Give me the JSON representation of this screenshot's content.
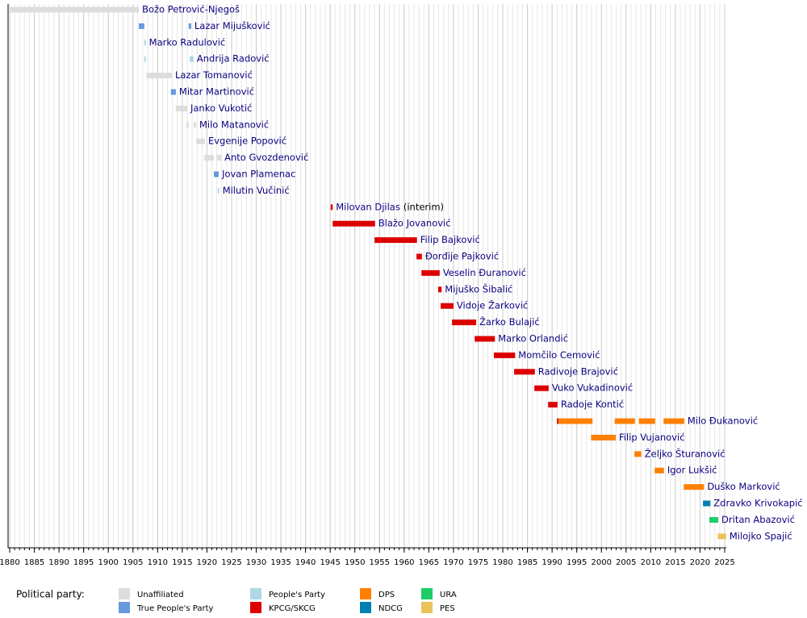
{
  "chart_data": {
    "type": "timeline",
    "xlim": [
      1880,
      2025
    ],
    "xticks": [
      1880,
      1885,
      1890,
      1895,
      1900,
      1905,
      1910,
      1915,
      1920,
      1925,
      1930,
      1935,
      1940,
      1945,
      1950,
      1955,
      1960,
      1965,
      1970,
      1975,
      1980,
      1985,
      1990,
      1995,
      2000,
      2005,
      2010,
      2015,
      2020,
      2025
    ],
    "grid": true,
    "legend_title": "Political party:",
    "parties": [
      {
        "name": "Unaffiliated",
        "color": "#dddddd"
      },
      {
        "name": "True People's Party",
        "color": "#6699dd"
      },
      {
        "name": "People's Party",
        "color": "#add8e6"
      },
      {
        "name": "KPCG/SKCG",
        "color": "#dd0000"
      },
      {
        "name": "DPS",
        "color": "#ff8000"
      },
      {
        "name": "NDCG",
        "color": "#0080b0"
      },
      {
        "name": "URA",
        "color": "#1ccc66"
      },
      {
        "name": "PES",
        "color": "#eac25a"
      }
    ],
    "rows": [
      {
        "name": "Božo Petrović-Njegoš",
        "segments": [
          {
            "start": 1880,
            "end": 1906.2,
            "party": "Unaffiliated"
          }
        ]
      },
      {
        "name": "Lazar Mijušković",
        "segments": [
          {
            "start": 1906.2,
            "end": 1907.3,
            "party": "True People's Party"
          },
          {
            "start": 1916.3,
            "end": 1916.8,
            "party": "True People's Party"
          }
        ]
      },
      {
        "name": "Marko Radulović",
        "segments": [
          {
            "start": 1907.3,
            "end": 1907.6,
            "party": "People's Party"
          }
        ]
      },
      {
        "name": "Andrija Radović",
        "segments": [
          {
            "start": 1907.3,
            "end": 1907.6,
            "party": "People's Party"
          },
          {
            "start": 1916.5,
            "end": 1917.3,
            "party": "People's Party"
          }
        ]
      },
      {
        "name": "Lazar Tomanović",
        "segments": [
          {
            "start": 1907.7,
            "end": 1912.9,
            "party": "Unaffiliated"
          }
        ]
      },
      {
        "name": "Mitar Martinović",
        "segments": [
          {
            "start": 1912.7,
            "end": 1913.7,
            "party": "True People's Party"
          }
        ]
      },
      {
        "name": "Janko Vukotić",
        "segments": [
          {
            "start": 1913.7,
            "end": 1916,
            "party": "Unaffiliated"
          }
        ]
      },
      {
        "name": "Milo Matanović",
        "segments": [
          {
            "start": 1915.8,
            "end": 1916.3,
            "party": "Unaffiliated"
          },
          {
            "start": 1917.3,
            "end": 1917.8,
            "party": "Unaffiliated"
          }
        ]
      },
      {
        "name": "Evgenije Popović",
        "segments": [
          {
            "start": 1917.8,
            "end": 1919.6,
            "party": "Unaffiliated"
          }
        ]
      },
      {
        "name": "Anto Gvozdenović",
        "segments": [
          {
            "start": 1919.4,
            "end": 1921.4,
            "party": "Unaffiliated"
          },
          {
            "start": 1922,
            "end": 1922.9,
            "party": "Unaffiliated"
          }
        ]
      },
      {
        "name": "Jovan Plamenac",
        "segments": [
          {
            "start": 1921.4,
            "end": 1922.4,
            "party": "True People's Party"
          }
        ]
      },
      {
        "name": "Milutin Vučinić",
        "segments": [
          {
            "start": 1922.2,
            "end": 1922.5,
            "party": "People's Party"
          }
        ]
      },
      {
        "name": "Milovan Djilas",
        "note": "(interim)",
        "segments": [
          {
            "start": 1945.1,
            "end": 1945.5,
            "party": "KPCG/SKCG"
          }
        ]
      },
      {
        "name": "Blažo Jovanović",
        "segments": [
          {
            "start": 1945.5,
            "end": 1954.1,
            "party": "KPCG/SKCG"
          }
        ]
      },
      {
        "name": "Filip Bajković",
        "segments": [
          {
            "start": 1954,
            "end": 1962.6,
            "party": "KPCG/SKCG"
          }
        ]
      },
      {
        "name": "Đorđije Pajković",
        "segments": [
          {
            "start": 1962.5,
            "end": 1963.6,
            "party": "KPCG/SKCG"
          }
        ]
      },
      {
        "name": "Veselin Đuranović",
        "segments": [
          {
            "start": 1963.5,
            "end": 1967.2,
            "party": "KPCG/SKCG"
          }
        ]
      },
      {
        "name": "Mijuško Šibalić",
        "segments": [
          {
            "start": 1966.9,
            "end": 1967.6,
            "party": "KPCG/SKCG"
          }
        ]
      },
      {
        "name": "Vidoje Žarković",
        "segments": [
          {
            "start": 1967.4,
            "end": 1970,
            "party": "KPCG/SKCG"
          }
        ]
      },
      {
        "name": "Žarko Bulajić",
        "segments": [
          {
            "start": 1969.7,
            "end": 1974.6,
            "party": "KPCG/SKCG"
          }
        ]
      },
      {
        "name": "Marko Orlandić",
        "segments": [
          {
            "start": 1974.3,
            "end": 1978.4,
            "party": "KPCG/SKCG"
          }
        ]
      },
      {
        "name": "Momčilo Cemović",
        "segments": [
          {
            "start": 1978.2,
            "end": 1982.5,
            "party": "KPCG/SKCG"
          }
        ]
      },
      {
        "name": "Radivoje Brajović",
        "segments": [
          {
            "start": 1982.3,
            "end": 1986.5,
            "party": "KPCG/SKCG"
          }
        ]
      },
      {
        "name": "Vuko Vukadinović",
        "segments": [
          {
            "start": 1986.4,
            "end": 1989.3,
            "party": "KPCG/SKCG"
          }
        ]
      },
      {
        "name": "Radoje Kontić",
        "segments": [
          {
            "start": 1989.2,
            "end": 1991.1,
            "party": "KPCG/SKCG"
          }
        ]
      },
      {
        "name": "Milo Đukanović",
        "segments": [
          {
            "start": 1991,
            "end": 1991.3,
            "party": "KPCG/SKCG"
          },
          {
            "start": 1991.3,
            "end": 1998.2,
            "party": "DPS"
          },
          {
            "start": 2002.7,
            "end": 2006.8,
            "party": "DPS"
          },
          {
            "start": 2007.6,
            "end": 2010.9,
            "party": "DPS"
          },
          {
            "start": 2012.6,
            "end": 2016.8,
            "party": "DPS"
          }
        ]
      },
      {
        "name": "Filip Vujanović",
        "segments": [
          {
            "start": 1997.9,
            "end": 2002.9,
            "party": "DPS"
          }
        ]
      },
      {
        "name": "Željko Šturanović",
        "segments": [
          {
            "start": 2006.7,
            "end": 2008.1,
            "party": "DPS"
          }
        ]
      },
      {
        "name": "Igor Lukšić",
        "segments": [
          {
            "start": 2010.8,
            "end": 2012.7,
            "party": "DPS"
          }
        ]
      },
      {
        "name": "Duško Marković",
        "segments": [
          {
            "start": 2016.7,
            "end": 2020.8,
            "party": "DPS"
          }
        ]
      },
      {
        "name": "Zdravko Krivokapić",
        "segments": [
          {
            "start": 2020.6,
            "end": 2022.1,
            "party": "NDCG"
          }
        ]
      },
      {
        "name": "Dritan Abazović",
        "segments": [
          {
            "start": 2021.9,
            "end": 2023.7,
            "party": "URA"
          }
        ]
      },
      {
        "name": "Milojko Spajić",
        "segments": [
          {
            "start": 2023.6,
            "end": 2025.3,
            "party": "PES"
          }
        ]
      }
    ]
  }
}
